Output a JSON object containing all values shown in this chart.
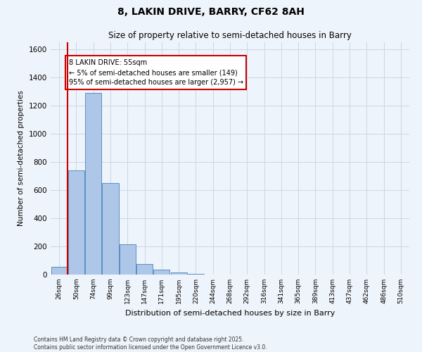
{
  "title": "8, LAKIN DRIVE, BARRY, CF62 8AH",
  "subtitle": "Size of property relative to semi-detached houses in Barry",
  "xlabel": "Distribution of semi-detached houses by size in Barry",
  "ylabel": "Number of semi-detached properties",
  "categories": [
    "26sqm",
    "50sqm",
    "74sqm",
    "99sqm",
    "123sqm",
    "147sqm",
    "171sqm",
    "195sqm",
    "220sqm",
    "244sqm",
    "268sqm",
    "292sqm",
    "316sqm",
    "341sqm",
    "365sqm",
    "389sqm",
    "413sqm",
    "437sqm",
    "462sqm",
    "486sqm",
    "510sqm"
  ],
  "values": [
    55,
    740,
    1290,
    650,
    215,
    75,
    35,
    15,
    5,
    0,
    0,
    0,
    0,
    0,
    0,
    0,
    0,
    0,
    0,
    0,
    0
  ],
  "bar_color": "#aec6e8",
  "bar_edge_color": "#5a8fc0",
  "grid_color": "#c8d8e8",
  "background_color": "#eef4fb",
  "vline_color": "#cc0000",
  "annotation_text": "8 LAKIN DRIVE: 55sqm\n← 5% of semi-detached houses are smaller (149)\n95% of semi-detached houses are larger (2,957) →",
  "annotation_box_color": "#ffffff",
  "annotation_box_edge": "#cc0000",
  "ylim": [
    0,
    1650
  ],
  "yticks": [
    0,
    200,
    400,
    600,
    800,
    1000,
    1200,
    1400,
    1600
  ],
  "footnote": "Contains HM Land Registry data © Crown copyright and database right 2025.\nContains public sector information licensed under the Open Government Licence v3.0."
}
